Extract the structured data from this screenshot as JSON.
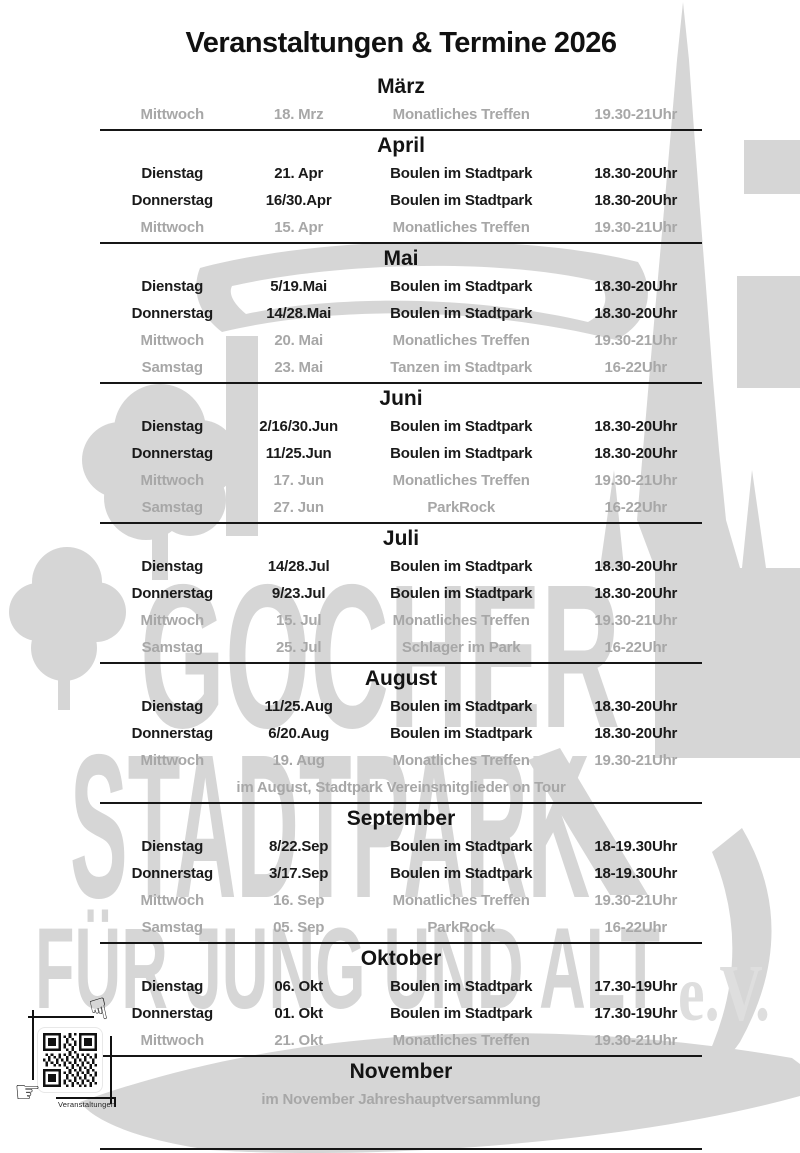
{
  "title": "Veranstaltungen & Termine 2026",
  "months": [
    {
      "name": "März",
      "divider": true,
      "rows": [
        {
          "day": "Mittwoch",
          "date": "18. Mrz",
          "event": "Monatliches Treffen",
          "time": "19.30-21Uhr",
          "muted": true
        }
      ]
    },
    {
      "name": "April",
      "divider": true,
      "rows": [
        {
          "day": "Dienstag",
          "date": "21. Apr",
          "event": "Boulen im Stadtpark",
          "time": "18.30-20Uhr",
          "muted": false
        },
        {
          "day": "Donnerstag",
          "date": "16/30.Apr",
          "event": "Boulen im Stadtpark",
          "time": "18.30-20Uhr",
          "muted": false
        },
        {
          "day": "Mittwoch",
          "date": "15. Apr",
          "event": "Monatliches Treffen",
          "time": "19.30-21Uhr",
          "muted": true
        }
      ]
    },
    {
      "name": "Mai",
      "divider": true,
      "rows": [
        {
          "day": "Dienstag",
          "date": "5/19.Mai",
          "event": "Boulen im Stadtpark",
          "time": "18.30-20Uhr",
          "muted": false
        },
        {
          "day": "Donnerstag",
          "date": "14/28.Mai",
          "event": "Boulen im Stadtpark",
          "time": "18.30-20Uhr",
          "muted": false
        },
        {
          "day": "Mittwoch",
          "date": "20. Mai",
          "event": "Monatliches Treffen",
          "time": "19.30-21Uhr",
          "muted": true
        },
        {
          "day": "Samstag",
          "date": "23. Mai",
          "event": "Tanzen im Stadtpark",
          "time": "16-22Uhr",
          "muted": true
        }
      ]
    },
    {
      "name": "Juni",
      "divider": true,
      "rows": [
        {
          "day": "Dienstag",
          "date": "2/16/30.Jun",
          "event": "Boulen im Stadtpark",
          "time": "18.30-20Uhr",
          "muted": false
        },
        {
          "day": "Donnerstag",
          "date": "11/25.Jun",
          "event": "Boulen im Stadtpark",
          "time": "18.30-20Uhr",
          "muted": false
        },
        {
          "day": "Mittwoch",
          "date": "17. Jun",
          "event": "Monatliches Treffen",
          "time": "19.30-21Uhr",
          "muted": true
        },
        {
          "day": "Samstag",
          "date": "27. Jun",
          "event": "ParkRock",
          "time": "16-22Uhr",
          "muted": true
        }
      ]
    },
    {
      "name": "Juli",
      "divider": true,
      "rows": [
        {
          "day": "Dienstag",
          "date": "14/28.Jul",
          "event": "Boulen im Stadtpark",
          "time": "18.30-20Uhr",
          "muted": false
        },
        {
          "day": "Donnerstag",
          "date": "9/23.Jul",
          "event": "Boulen im Stadtpark",
          "time": "18.30-20Uhr",
          "muted": false
        },
        {
          "day": "Mittwoch",
          "date": "15. Jul",
          "event": "Monatliches Treffen",
          "time": "19.30-21Uhr",
          "muted": true
        },
        {
          "day": "Samstag",
          "date": "25. Jul",
          "event": "Schlager im Park",
          "time": "16-22Uhr",
          "muted": true
        }
      ]
    },
    {
      "name": "August",
      "divider": true,
      "note": "im August, Stadtpark Vereinsmitglieder on Tour",
      "rows": [
        {
          "day": "Dienstag",
          "date": "11/25.Aug",
          "event": "Boulen im Stadtpark",
          "time": "18.30-20Uhr",
          "muted": false
        },
        {
          "day": "Donnerstag",
          "date": "6/20.Aug",
          "event": "Boulen im Stadtpark",
          "time": "18.30-20Uhr",
          "muted": false
        },
        {
          "day": "Mittwoch",
          "date": "19. Aug",
          "event": "Monatliches Treffen",
          "time": "19.30-21Uhr",
          "muted": true
        }
      ]
    },
    {
      "name": "September",
      "divider": true,
      "rows": [
        {
          "day": "Dienstag",
          "date": "8/22.Sep",
          "event": "Boulen im Stadtpark",
          "time": "18-19.30Uhr",
          "muted": false
        },
        {
          "day": "Donnerstag",
          "date": "3/17.Sep",
          "event": "Boulen im Stadtpark",
          "time": "18-19.30Uhr",
          "muted": false
        },
        {
          "day": "Mittwoch",
          "date": "16. Sep",
          "event": "Monatliches Treffen",
          "time": "19.30-21Uhr",
          "muted": true
        },
        {
          "day": "Samstag",
          "date": "05. Sep",
          "event": "ParkRock",
          "time": "16-22Uhr",
          "muted": true
        }
      ]
    },
    {
      "name": "Oktober",
      "divider": true,
      "rows": [
        {
          "day": "Dienstag",
          "date": "06. Okt",
          "event": "Boulen im Stadtpark",
          "time": "17.30-19Uhr",
          "muted": false
        },
        {
          "day": "Donnerstag",
          "date": "01. Okt",
          "event": "Boulen im Stadtpark",
          "time": "17.30-19Uhr",
          "muted": false
        },
        {
          "day": "Mittwoch",
          "date": "21. Okt",
          "event": "Monatliches Treffen",
          "time": "19.30-21Uhr",
          "muted": true
        }
      ]
    },
    {
      "name": "November",
      "divider": false,
      "note": "im November Jahreshauptversammlung",
      "rows": []
    }
  ],
  "qr": {
    "label": "Veranstaltungen"
  },
  "icons": {
    "hand_down": "☟",
    "hand_right": "☞"
  },
  "watermark": {
    "line1": "GOCHER",
    "line2": "STADTPARK",
    "line3": "FÜR JUNG UND ALT",
    "suffix": "e.V.",
    "color": "#d6d6d6"
  },
  "colors": {
    "text": "#1a1a1a",
    "muted_text": "#a7a7a7",
    "watermark": "#d6d6d6",
    "divider": "#161616"
  }
}
